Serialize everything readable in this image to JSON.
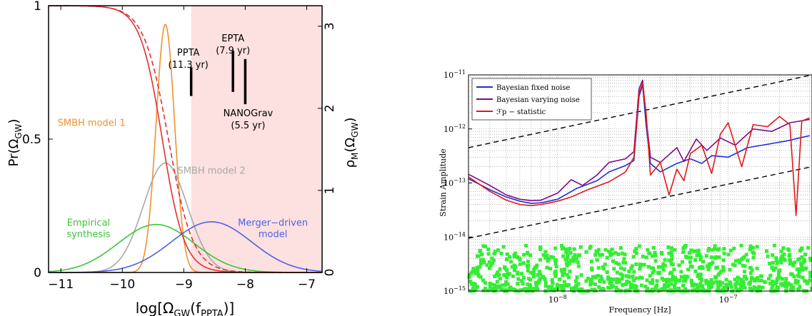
{
  "chart_data": [
    {
      "type": "line",
      "xlabel_main": "log[Ω",
      "xlabel_sub1": "GW",
      "xlabel_mid": "(f",
      "xlabel_sub2": "PPTA",
      "xlabel_end": ")]",
      "ylabel_left_main": "Pr(Ω",
      "ylabel_left_sub": "GW",
      "ylabel_left_end": ")",
      "ylabel_right_main": "ρ",
      "ylabel_right_sub1": "M",
      "ylabel_right_mid": "(Ω",
      "ylabel_right_sub2": "GW",
      "ylabel_right_end": ")",
      "xlim": [
        -11.2,
        -6.75
      ],
      "ylim_left": [
        0,
        1.0
      ],
      "ylim_right": [
        0,
        3.25
      ],
      "xticks": [
        "−11",
        "−10",
        "−9",
        "−8",
        "−7"
      ],
      "yticks_left": [
        "0",
        "0.5",
        "1"
      ],
      "yticks_right": [
        "0",
        "1",
        "2",
        "3"
      ],
      "excluded_region": {
        "x_from": -8.88,
        "color": "#fde0e0"
      },
      "limits": [
        {
          "label_line1": "PPTA",
          "label_line2": "(11.3 yr)",
          "x": -8.88,
          "y_low": 2.15,
          "y_high": 2.5
        },
        {
          "label_line1": "EPTA",
          "label_line2": "(7.9 yr)",
          "x": -8.2,
          "y_low": 2.2,
          "y_high": 2.7
        },
        {
          "label_line1": "NANOGrav",
          "label_line2": "(5.5 yr)",
          "x": -8.0,
          "y_low": 2.05,
          "y_high": 2.6
        }
      ],
      "series": [
        {
          "name": "SMBH model 1",
          "color": "#f0922e",
          "kind": "gaussian",
          "mu": -9.3,
          "sigma": 0.15,
          "amp": 0.93,
          "label_x": -10.5,
          "label_y": 0.55
        },
        {
          "name": "SMBH model 2",
          "color": "#a8a8a8",
          "kind": "gaussian",
          "mu": -9.3,
          "sigma": 0.36,
          "amp": 0.41,
          "label_x": -8.55,
          "label_y": 0.37
        },
        {
          "name": "Empirical\nsynthesis",
          "color": "#3cc43c",
          "kind": "gaussian",
          "mu": -9.45,
          "sigma": 0.62,
          "amp": 0.18,
          "label_x": -10.55,
          "label_y": 0.175
        },
        {
          "name": "Merger−driven\nmodel",
          "color": "#4a62e8",
          "kind": "gaussian",
          "mu": -8.55,
          "sigma": 0.65,
          "amp": 0.19,
          "label_x": -7.55,
          "label_y": 0.175
        },
        {
          "name": "",
          "color": "#e03030",
          "kind": "sigmoid",
          "x0": -9.35,
          "w": 0.18,
          "style": "solid"
        },
        {
          "name": "",
          "color": "#e03030",
          "kind": "sigmoid",
          "x0": -9.25,
          "w": 0.2,
          "style": "dashed"
        }
      ]
    },
    {
      "type": "line",
      "xlabel": "Frequency [Hz]",
      "ylabel": "Strain Amplitude",
      "xscale": "log",
      "yscale": "log",
      "xlim": [
        3e-09,
        3.1e-07
      ],
      "ylim": [
        1e-15,
        1e-11
      ],
      "xticks": [
        {
          "base": "10",
          "exp": "−8",
          "value": 1e-08
        },
        {
          "base": "10",
          "exp": "−7",
          "value": 1e-07
        }
      ],
      "yticks": [
        {
          "base": "10",
          "exp": "−11",
          "value": 1e-11
        },
        {
          "base": "10",
          "exp": "−12",
          "value": 1e-12
        },
        {
          "base": "10",
          "exp": "−13",
          "value": 1e-13
        },
        {
          "base": "10",
          "exp": "−14",
          "value": 1e-14
        },
        {
          "base": "10",
          "exp": "−15",
          "value": 1e-15
        }
      ],
      "grid": true,
      "legend_position": "top-left",
      "legend": [
        {
          "label": "Bayesian fixed noise",
          "color": "#1a30d8"
        },
        {
          "label": "Bayesian varying noise",
          "color": "#800a8a"
        },
        {
          "label": "ℱp − statistic",
          "color": "#e01818"
        }
      ],
      "series": [
        {
          "name": "Bayesian fixed noise",
          "color": "#1a30d8",
          "points": [
            [
              3e-09,
              1.2e-13
            ],
            [
              4e-09,
              7.5e-14
            ],
            [
              5e-09,
              5.5e-14
            ],
            [
              6e-09,
              4.6e-14
            ],
            [
              7e-09,
              4.2e-14
            ],
            [
              8e-09,
              4.3e-14
            ],
            [
              1e-08,
              5e-14
            ],
            [
              1.3e-08,
              8e-14
            ],
            [
              1.7e-08,
              1.1e-13
            ],
            [
              2e-08,
              1.6e-13
            ],
            [
              2.5e-08,
              2.1e-13
            ],
            [
              2.8e-08,
              2.6e-13
            ],
            [
              3e-08,
              4e-12
            ],
            [
              3.15e-08,
              6.5e-12
            ],
            [
              3.3e-08,
              1.2e-12
            ],
            [
              3.5e-08,
              2.3e-13
            ],
            [
              4e-08,
              1.6e-13
            ],
            [
              5e-08,
              2.3e-13
            ],
            [
              6e-08,
              2.8e-13
            ],
            [
              7e-08,
              2.3e-13
            ],
            [
              8e-08,
              3.2e-13
            ],
            [
              1e-07,
              3e-13
            ],
            [
              1.3e-07,
              4.5e-13
            ],
            [
              1.7e-07,
              5.2e-13
            ],
            [
              2.2e-07,
              6e-13
            ],
            [
              3e-07,
              7.5e-13
            ]
          ]
        },
        {
          "name": "Bayesian varying noise",
          "color": "#800a8a",
          "points": [
            [
              3e-09,
              1.45e-13
            ],
            [
              4e-09,
              9e-14
            ],
            [
              5e-09,
              6e-14
            ],
            [
              6e-09,
              5e-14
            ],
            [
              7e-09,
              4.7e-14
            ],
            [
              8e-09,
              4.8e-14
            ],
            [
              1e-08,
              6.5e-14
            ],
            [
              1.2e-08,
              1.15e-13
            ],
            [
              1.4e-08,
              9e-14
            ],
            [
              1.7e-08,
              1.4e-13
            ],
            [
              2e-08,
              2.4e-13
            ],
            [
              2.5e-08,
              2.8e-13
            ],
            [
              2.8e-08,
              3.8e-13
            ],
            [
              3e-08,
              5.5e-12
            ],
            [
              3.15e-08,
              8e-12
            ],
            [
              3.3e-08,
              1.6e-12
            ],
            [
              3.5e-08,
              3e-13
            ],
            [
              4e-08,
              2.4e-13
            ],
            [
              5e-08,
              4.5e-13
            ],
            [
              5.5e-08,
              2.5e-13
            ],
            [
              6.5e-08,
              6.5e-13
            ],
            [
              7.5e-08,
              4e-13
            ],
            [
              9e-08,
              6.8e-13
            ],
            [
              1.1e-07,
              5e-13
            ],
            [
              1.4e-07,
              1e-12
            ],
            [
              1.8e-07,
              9e-13
            ],
            [
              2.3e-07,
              1.3e-12
            ],
            [
              3e-07,
              1.5e-12
            ]
          ]
        },
        {
          "name": "ℱp − statistic",
          "color": "#e01818",
          "points": [
            [
              3e-09,
              1.3e-13
            ],
            [
              4e-09,
              7e-14
            ],
            [
              5e-09,
              4.8e-14
            ],
            [
              6e-09,
              4e-14
            ],
            [
              7e-09,
              3.8e-14
            ],
            [
              8e-09,
              4e-14
            ],
            [
              1e-08,
              4.6e-14
            ],
            [
              1.2e-08,
              5.5e-14
            ],
            [
              1.5e-08,
              7.5e-14
            ],
            [
              2e-08,
              1.05e-13
            ],
            [
              2.5e-08,
              1.6e-13
            ],
            [
              2.8e-08,
              3e-13
            ],
            [
              3e-08,
              4.5e-12
            ],
            [
              3.15e-08,
              7e-12
            ],
            [
              3.3e-08,
              2e-12
            ],
            [
              3.5e-08,
              1.4e-13
            ],
            [
              4e-08,
              2.4e-13
            ],
            [
              4.5e-08,
              6e-14
            ],
            [
              5e-08,
              1.8e-13
            ],
            [
              5.5e-08,
              1.1e-13
            ],
            [
              6e-08,
              3.5e-13
            ],
            [
              7e-08,
              5e-13
            ],
            [
              8e-08,
              1.5e-13
            ],
            [
              9e-08,
              8e-13
            ],
            [
              1e-07,
              1.3e-12
            ],
            [
              1.2e-07,
              2e-13
            ],
            [
              1.4e-07,
              1.2e-12
            ],
            [
              1.7e-07,
              1.1e-12
            ],
            [
              2e-07,
              1.7e-12
            ],
            [
              2.3e-07,
              1.2e-12
            ],
            [
              2.5e-07,
              2.5e-14
            ],
            [
              2.7e-07,
              1.4e-12
            ],
            [
              3e-07,
              1.6e-12
            ]
          ]
        }
      ],
      "reference_lines": [
        {
          "style": "dashed",
          "color": "#000000",
          "points": [
            [
              3e-09,
              4.5e-13
            ],
            [
              3.1e-07,
              1e-11
            ]
          ]
        },
        {
          "style": "dashed",
          "color": "#000000",
          "points": [
            [
              3e-09,
              9.5e-15
            ],
            [
              3.1e-07,
              2e-13
            ]
          ]
        }
      ],
      "scatter": {
        "color": "#33ee33",
        "y_min": 1e-15,
        "y_max": 7e-15
      }
    }
  ]
}
